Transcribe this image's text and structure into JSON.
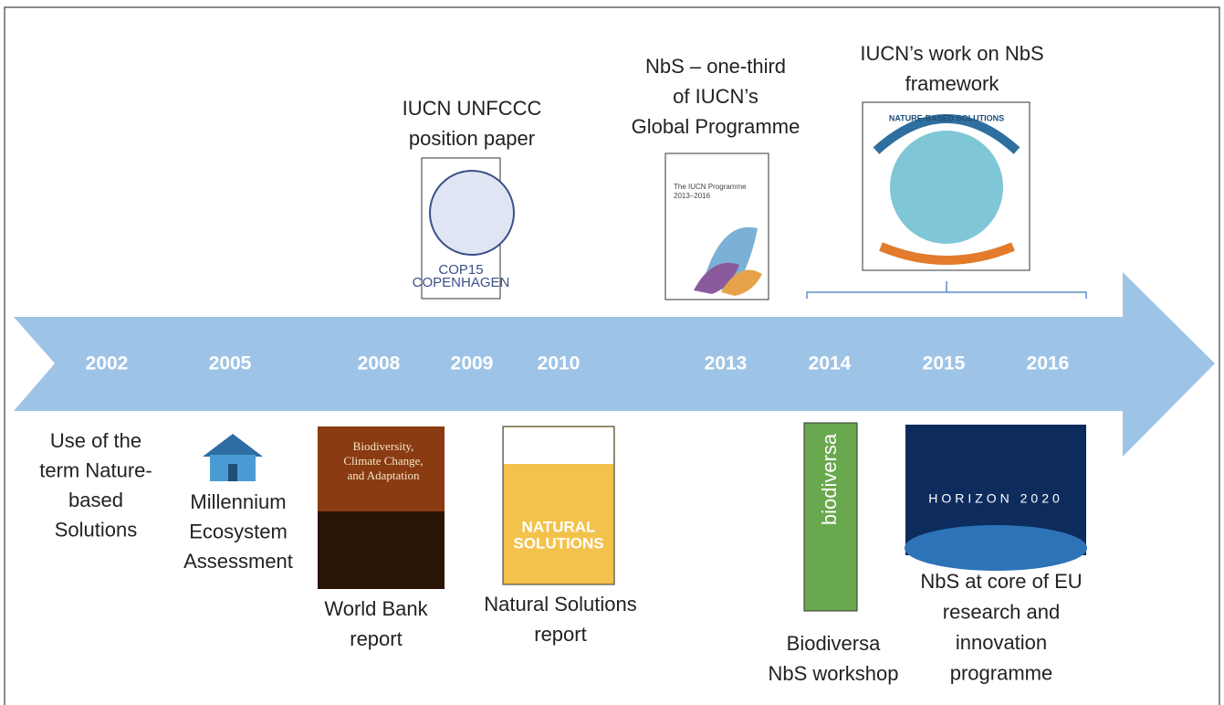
{
  "timeline": {
    "years": [
      "2002",
      "2005",
      "2008",
      "2009",
      "2010",
      "2013",
      "2014",
      "2015",
      "2016"
    ]
  },
  "events": [
    {
      "label": [
        "Use of the",
        "term Nature-",
        "based",
        "Solutions"
      ]
    },
    {
      "label": [
        "Millennium",
        "Ecosystem",
        "Assessment"
      ]
    },
    {
      "label": [
        "World Bank",
        "report"
      ],
      "image_text": [
        "Biodiversity,",
        "Climate Change,",
        "and Adaptation"
      ]
    },
    {
      "label": [
        "IUCN UNFCCC",
        "position paper"
      ],
      "image_text": [
        "COP15",
        "COPENHAGEN"
      ]
    },
    {
      "label": [
        "Natural Solutions",
        "report"
      ],
      "image_text": [
        "NATURAL",
        "SOLUTIONS"
      ]
    },
    {
      "label": [
        "NbS – one-third",
        "of IUCN’s",
        "Global Programme"
      ],
      "image_text": [
        "The IUCN Programme",
        "2013–2016"
      ]
    },
    {
      "label": [
        "IUCN’s work on NbS",
        "framework"
      ],
      "image_text": [
        "NATURE-BASED SOLUTIONS"
      ]
    },
    {
      "label": [
        "Biodiversa",
        "NbS workshop"
      ],
      "image_text": [
        "biodiversa"
      ]
    },
    {
      "label": [
        "NbS at core of EU",
        "research and",
        "innovation",
        "programme"
      ],
      "image_text": [
        "HORIZON 2020"
      ]
    }
  ]
}
